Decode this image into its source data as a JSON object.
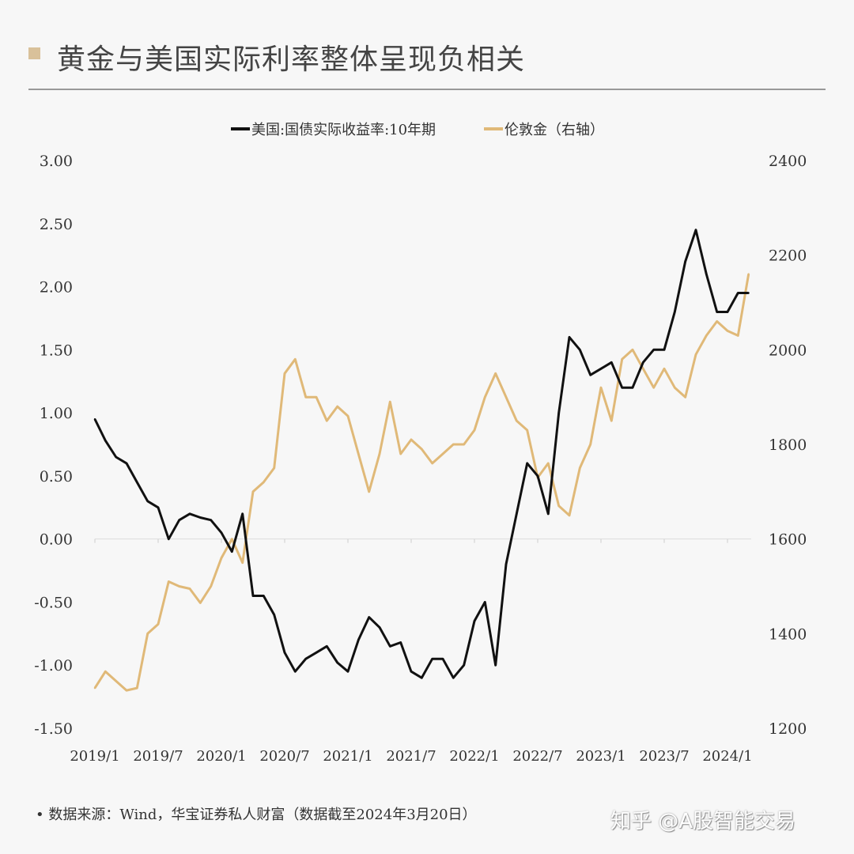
{
  "title": "黄金与美国实际利率整体呈现负相关",
  "footer": "•  数据来源：Wind，华宝证券私人财富（数据截至2024年3月20日）",
  "watermark": "知乎 @A股智能交易",
  "chart_data": {
    "type": "line",
    "xlabel": "",
    "ylabel": "",
    "y2label": "",
    "ylim": [
      -1.5,
      3.0
    ],
    "y2lim": [
      1200,
      2400
    ],
    "yticks": [
      "3.00",
      "2.50",
      "2.00",
      "1.50",
      "1.00",
      "0.50",
      "0.00",
      "-0.50",
      "-1.00",
      "-1.50"
    ],
    "y2ticks": [
      "2400",
      "2200",
      "2000",
      "1800",
      "1600",
      "1400",
      "1200"
    ],
    "xticks": [
      "2019/1",
      "2019/7",
      "2020/1",
      "2020/7",
      "2021/1",
      "2021/7",
      "2022/1",
      "2022/7",
      "2023/1",
      "2023/7",
      "2024/1"
    ],
    "legend_position": "top-center",
    "grid": false,
    "x": [
      "2019-01",
      "2019-02",
      "2019-03",
      "2019-04",
      "2019-05",
      "2019-06",
      "2019-07",
      "2019-08",
      "2019-09",
      "2019-10",
      "2019-11",
      "2019-12",
      "2020-01",
      "2020-02",
      "2020-03",
      "2020-04",
      "2020-05",
      "2020-06",
      "2020-07",
      "2020-08",
      "2020-09",
      "2020-10",
      "2020-11",
      "2020-12",
      "2021-01",
      "2021-02",
      "2021-03",
      "2021-04",
      "2021-05",
      "2021-06",
      "2021-07",
      "2021-08",
      "2021-09",
      "2021-10",
      "2021-11",
      "2021-12",
      "2022-01",
      "2022-02",
      "2022-03",
      "2022-04",
      "2022-05",
      "2022-06",
      "2022-07",
      "2022-08",
      "2022-09",
      "2022-10",
      "2022-11",
      "2022-12",
      "2023-01",
      "2023-02",
      "2023-03",
      "2023-04",
      "2023-05",
      "2023-06",
      "2023-07",
      "2023-08",
      "2023-09",
      "2023-10",
      "2023-11",
      "2023-12",
      "2024-01",
      "2024-02",
      "2024-03"
    ],
    "series": [
      {
        "name": "美国:国债实际收益率:10年期",
        "axis": "left",
        "color": "#111111",
        "values": [
          0.95,
          0.78,
          0.65,
          0.6,
          0.45,
          0.3,
          0.25,
          0.0,
          0.15,
          0.2,
          0.17,
          0.15,
          0.05,
          -0.1,
          0.2,
          -0.45,
          -0.45,
          -0.6,
          -0.9,
          -1.05,
          -0.95,
          -0.9,
          -0.85,
          -0.98,
          -1.05,
          -0.8,
          -0.62,
          -0.7,
          -0.85,
          -0.82,
          -1.05,
          -1.1,
          -0.95,
          -0.95,
          -1.1,
          -1.0,
          -0.65,
          -0.5,
          -1.0,
          -0.2,
          0.2,
          0.6,
          0.5,
          0.2,
          1.0,
          1.6,
          1.5,
          1.3,
          1.35,
          1.4,
          1.2,
          1.2,
          1.4,
          1.5,
          1.5,
          1.8,
          2.2,
          2.45,
          2.1,
          1.8,
          1.8,
          1.95,
          1.95
        ]
      },
      {
        "name": "伦敦金（右轴）",
        "axis": "right",
        "color": "#e0b978",
        "values": [
          1285,
          1320,
          1300,
          1280,
          1285,
          1400,
          1420,
          1510,
          1500,
          1495,
          1465,
          1500,
          1560,
          1600,
          1550,
          1700,
          1720,
          1750,
          1950,
          1980,
          1900,
          1900,
          1850,
          1880,
          1860,
          1780,
          1700,
          1780,
          1890,
          1780,
          1810,
          1790,
          1760,
          1780,
          1800,
          1800,
          1830,
          1900,
          1950,
          1900,
          1850,
          1830,
          1730,
          1760,
          1670,
          1650,
          1750,
          1800,
          1920,
          1850,
          1980,
          2000,
          1960,
          1920,
          1960,
          1920,
          1900,
          1990,
          2030,
          2060,
          2040,
          2030,
          2160
        ]
      }
    ]
  }
}
